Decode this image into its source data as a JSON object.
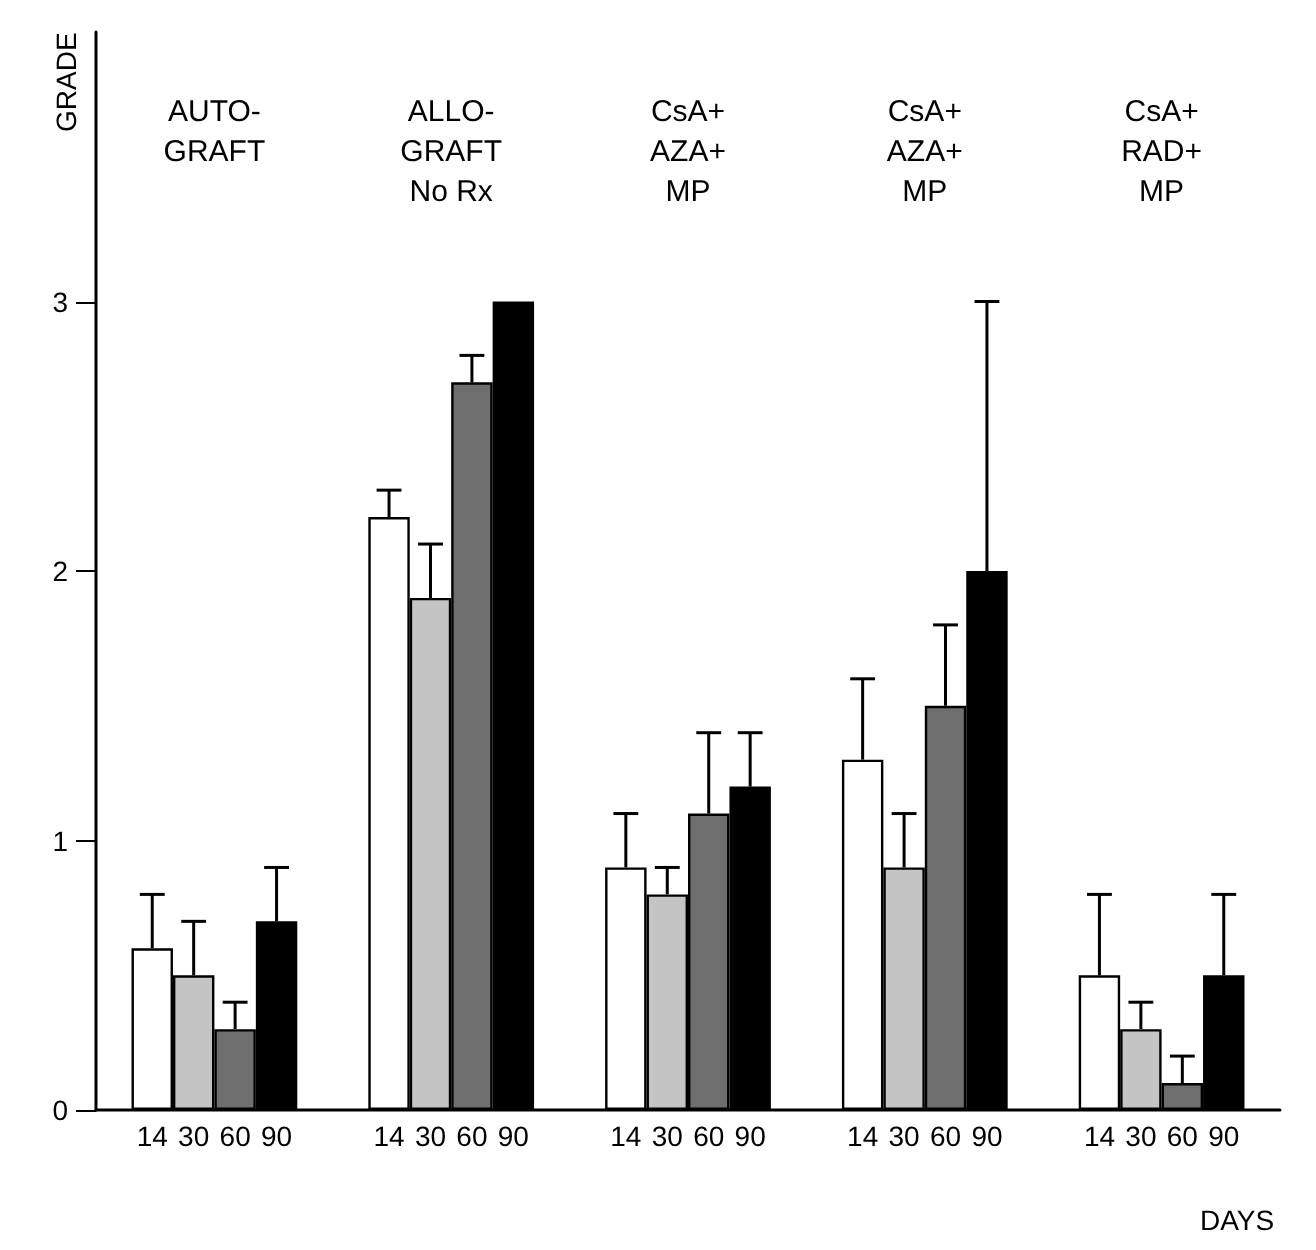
{
  "chart_data": {
    "type": "bar",
    "xlabel": "DAYS",
    "ylabel": "GRADE",
    "categories": [
      "AUTO-\nGRAFT",
      "ALLO-\nGRAFT\nNo Rx",
      "CsA+\nAZA+\nMP",
      "CsA+\nAZA+\nMP",
      "CsA+\nRAD+\nMP"
    ],
    "series": [
      {
        "name": "14",
        "color": "#ffffff",
        "values": [
          0.6,
          2.2,
          0.9,
          1.3,
          0.5
        ],
        "errors": [
          [
            0.6,
            0.8
          ],
          [
            2.2,
            2.3
          ],
          [
            0.9,
            1.1
          ],
          [
            1.3,
            1.6
          ],
          [
            0.5,
            0.8
          ]
        ]
      },
      {
        "name": "30",
        "color": "#c4c4c4",
        "values": [
          0.5,
          1.9,
          0.8,
          0.9,
          0.3
        ],
        "errors": [
          [
            0.5,
            0.7
          ],
          [
            1.9,
            2.1
          ],
          [
            0.8,
            0.9
          ],
          [
            0.9,
            1.1
          ],
          [
            0.3,
            0.4
          ]
        ]
      },
      {
        "name": "60",
        "color": "#6e6e6e",
        "values": [
          0.3,
          2.7,
          1.1,
          1.5,
          0.1
        ],
        "errors": [
          [
            0.3,
            0.4
          ],
          [
            2.7,
            2.8
          ],
          [
            1.1,
            1.4
          ],
          [
            1.5,
            1.8
          ],
          [
            0.1,
            0.2
          ]
        ]
      },
      {
        "name": "90",
        "color": "#000000",
        "values": [
          0.7,
          3.0,
          1.2,
          2.0,
          0.5
        ],
        "errors": [
          [
            0.7,
            0.9
          ],
          null,
          [
            1.2,
            1.4
          ],
          [
            2.0,
            3.0
          ],
          [
            0.5,
            0.8
          ]
        ]
      }
    ],
    "ylim": [
      0,
      4
    ],
    "yticks": [
      0,
      1,
      2,
      3
    ],
    "grid": false,
    "legend": false
  }
}
